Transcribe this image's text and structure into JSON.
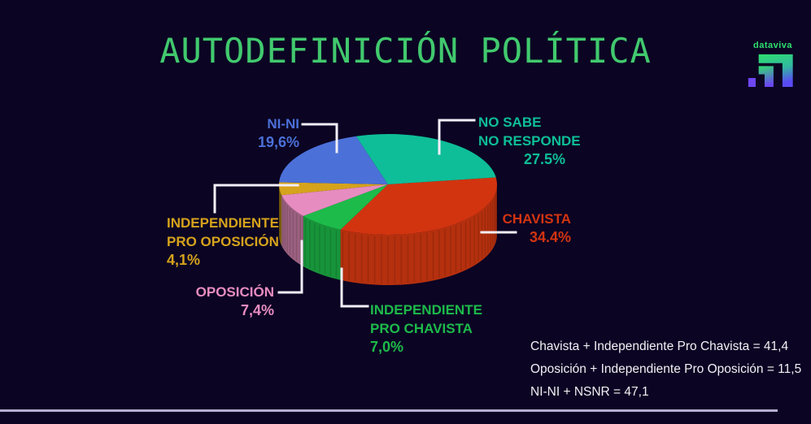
{
  "page": {
    "title": "AUTODEFINICIÓN POLÍTICA"
  },
  "logo": {
    "text": "dataviva"
  },
  "chart_data": {
    "type": "pie",
    "title": "AUTODEFINICIÓN POLÍTICA",
    "unit": "%",
    "style": "3d-pie",
    "start_angle_deg": -8,
    "background_color": "#0b0423",
    "slices": [
      {
        "name": "Chavista",
        "value": 34.4,
        "pct_label": "34.4%",
        "label_lines": [
          "CHAVISTA"
        ],
        "color": "#d23410",
        "side_color": "#b5300e"
      },
      {
        "name": "Independiente Pro Chavista",
        "value": 7.0,
        "pct_label": "7,0%",
        "label_lines": [
          "INDEPENDIENTE",
          "PRO CHAVISTA"
        ],
        "color": "#1dbb4a",
        "side_color": "#17943a"
      },
      {
        "name": "Oposición",
        "value": 7.4,
        "pct_label": "7,4%",
        "label_lines": [
          "OPOSICIÓN"
        ],
        "color": "#e78cc0",
        "side_color": "#9c6180"
      },
      {
        "name": "Independiente Pro Oposición",
        "value": 4.1,
        "pct_label": "4,1%",
        "label_lines": [
          "INDEPENDIENTE",
          "PRO OPOSICIÓN"
        ],
        "color": "#d6a31c",
        "side_color": "#8a6c0c"
      },
      {
        "name": "Ni-Ni",
        "value": 19.6,
        "pct_label": "19,6%",
        "label_lines": [
          "NI-NI"
        ],
        "color": "#4b70d8",
        "side_color": "#3a57a8"
      },
      {
        "name": "No Sabe / No Responde",
        "value": 27.5,
        "pct_label": "27.5%",
        "label_lines": [
          "NO SABE",
          "NO RESPONDE"
        ],
        "color": "#0ebe98",
        "side_color": "#0a8f73"
      }
    ],
    "footnotes": [
      "Chavista + Independiente Pro Chavista = 41,4",
      "Oposición + Independiente Pro Oposición = 11,5",
      "NI-NI + NSNR = 47,1"
    ]
  }
}
